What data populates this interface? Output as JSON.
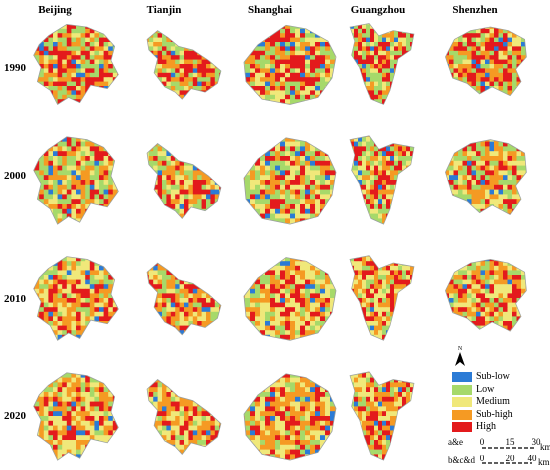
{
  "columns": [
    "Beijing",
    "Tianjin",
    "Shanghai",
    "Guangzhou",
    "Shenzhen"
  ],
  "rows": [
    "1990",
    "2000",
    "2010",
    "2020"
  ],
  "legend": {
    "north_label": "N",
    "items": [
      {
        "label": "Sub-low",
        "color": "#2b7bd6"
      },
      {
        "label": "Low",
        "color": "#a6d96a"
      },
      {
        "label": "Medium",
        "color": "#f0e87a"
      },
      {
        "label": "Sub-high",
        "color": "#f59a23"
      },
      {
        "label": "High",
        "color": "#e31a1c"
      }
    ]
  },
  "scale_bars": [
    {
      "label": "a&e",
      "ticks": [
        "0",
        "15",
        "30"
      ],
      "unit": "km"
    },
    {
      "label": "b&c&d",
      "ticks": [
        "0",
        "20",
        "40"
      ],
      "unit": "km"
    }
  ],
  "panels_present": {
    "1990": [
      true,
      true,
      true,
      true,
      true
    ],
    "2000": [
      true,
      true,
      true,
      true,
      true
    ],
    "2010": [
      true,
      true,
      true,
      true,
      true
    ],
    "2020": [
      true,
      true,
      true,
      true,
      false
    ]
  }
}
